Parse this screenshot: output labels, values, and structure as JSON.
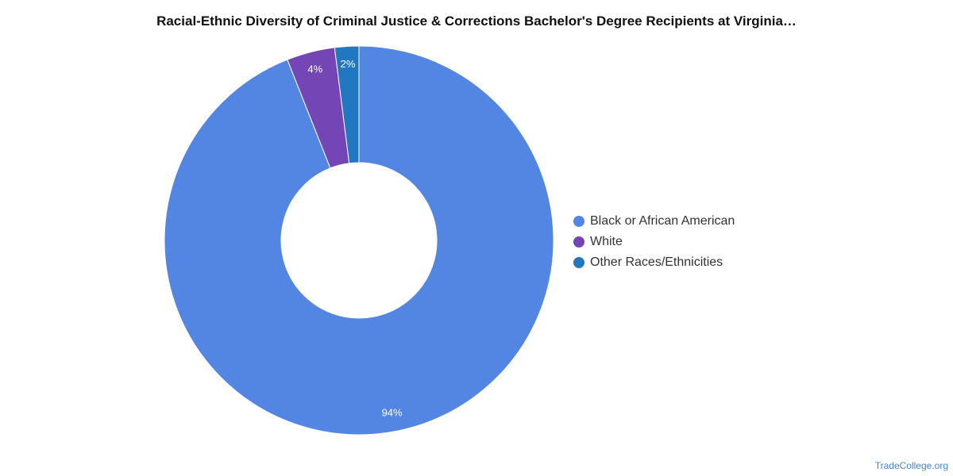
{
  "chart_data": {
    "type": "pie",
    "title": "Racial-Ethnic Diversity of Criminal Justice & Corrections Bachelor's Degree Recipients at Virginia…",
    "donut": true,
    "categories": [
      "Black or African American",
      "White",
      "Other Races/Ethnicities"
    ],
    "values": [
      94,
      4,
      2
    ],
    "labels": [
      "94%",
      "4%",
      "2%"
    ],
    "colors": [
      "#5286e2",
      "#7445b5",
      "#2277c1"
    ],
    "legend_position": "right"
  },
  "footer": {
    "credit": "TradeCollege.org"
  }
}
